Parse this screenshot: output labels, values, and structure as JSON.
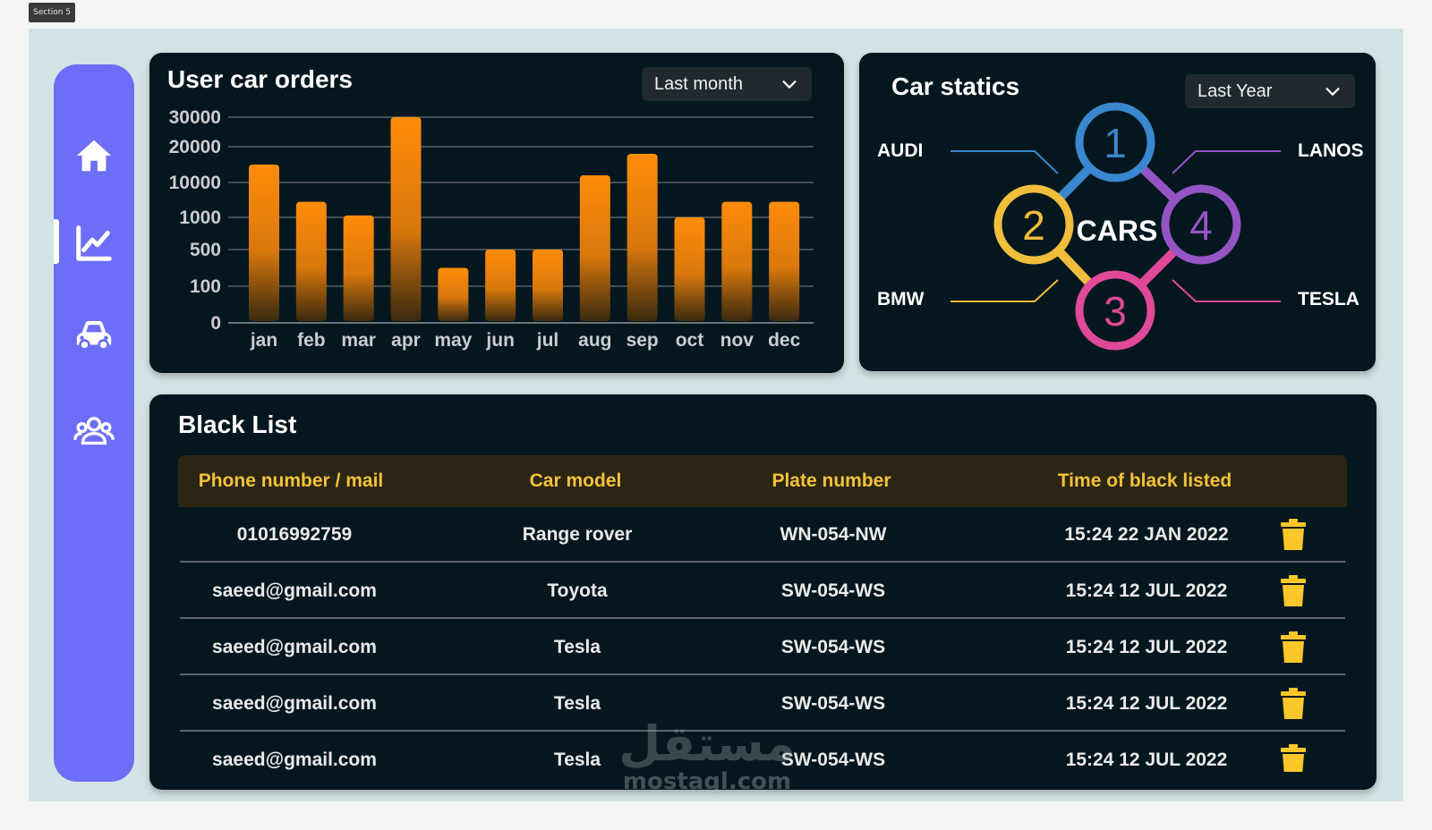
{
  "section_tag": "Section 5",
  "sidebar": {
    "items": [
      {
        "name": "home",
        "icon": "home-icon",
        "active": false
      },
      {
        "name": "statistics",
        "icon": "chart-icon",
        "active": true
      },
      {
        "name": "cars",
        "icon": "car-icon",
        "active": false
      },
      {
        "name": "users",
        "icon": "users-icon",
        "active": false
      }
    ]
  },
  "orders": {
    "title": "User car orders",
    "filter": "Last month"
  },
  "chart_data": {
    "type": "bar",
    "title": "User car orders",
    "categories": [
      "jan",
      "feb",
      "mar",
      "apr",
      "may",
      "jun",
      "jul",
      "aug",
      "sep",
      "oct",
      "nov",
      "dec"
    ],
    "values": [
      15000,
      5000,
      1500,
      30000,
      300,
      500,
      500,
      12000,
      18000,
      1000,
      5000,
      5000
    ],
    "y_ticks": [
      "30000",
      "20000",
      "10000",
      "1000",
      "500",
      "100",
      "0"
    ],
    "ylim": [
      0,
      30000
    ],
    "grid": true,
    "bar_color": "#ff8c0a"
  },
  "statics": {
    "title": "Car statics",
    "filter": "Last Year",
    "center_label": "CARS",
    "nodes": [
      {
        "number": "1",
        "brand": "AUDI",
        "color": "#3a87cf"
      },
      {
        "number": "2",
        "brand": "BMW",
        "color": "#f0bd3c"
      },
      {
        "number": "3",
        "brand": "TESLA",
        "color": "#e0489a"
      },
      {
        "number": "4",
        "brand": "LANOS",
        "color": "#9454c4"
      }
    ]
  },
  "blacklist": {
    "title": "Black List",
    "columns": [
      "Phone number / mail",
      "Car model",
      "Plate number",
      "Time of black listed"
    ],
    "rows": [
      {
        "contact": "01016992759",
        "model": "Range rover",
        "plate": "WN-054-NW",
        "time": "15:24  22 JAN 2022"
      },
      {
        "contact": "saeed@gmail.com",
        "model": "Toyota",
        "plate": "SW-054-WS",
        "time": "15:24  12 JUL 2022"
      },
      {
        "contact": "saeed@gmail.com",
        "model": "Tesla",
        "plate": "SW-054-WS",
        "time": "15:24  12 JUL 2022"
      },
      {
        "contact": "saeed@gmail.com",
        "model": "Tesla",
        "plate": "SW-054-WS",
        "time": "15:24  12 JUL 2022"
      },
      {
        "contact": "saeed@gmail.com",
        "model": "Tesla",
        "plate": "SW-054-WS",
        "time": "15:24  12 JUL 2022"
      }
    ],
    "header_color": "#f4c23a",
    "trash_color": "#fbc72a"
  },
  "watermark": {
    "text_ar": "مستقل",
    "text_en": "mostaql.com"
  }
}
